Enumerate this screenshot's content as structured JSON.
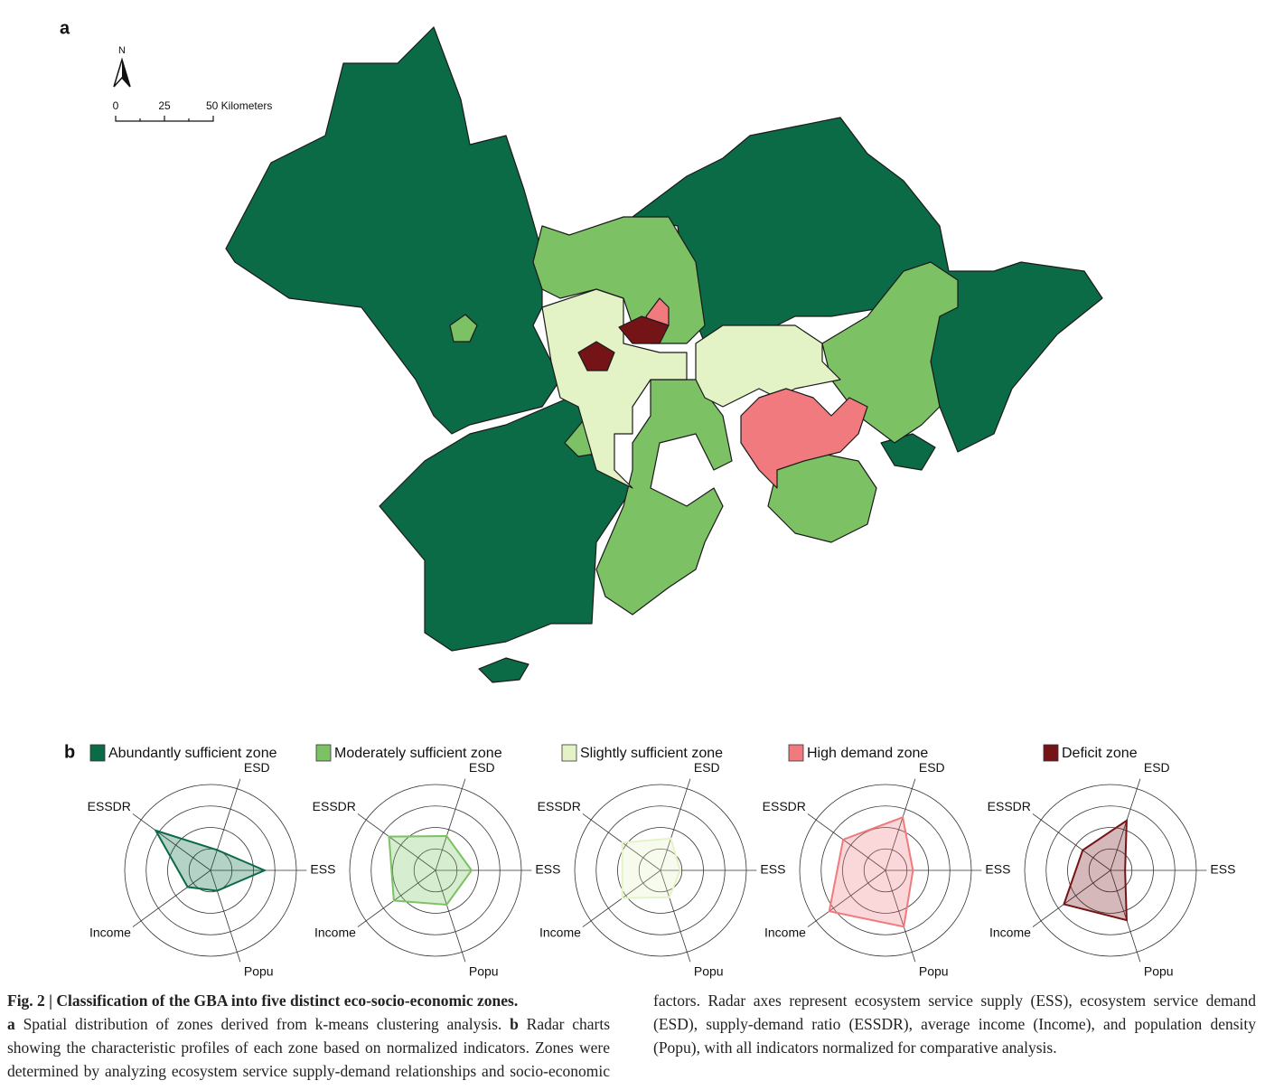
{
  "panel_labels": {
    "a": "a",
    "b": "b"
  },
  "map": {
    "north": "N",
    "scale_labels": [
      "0",
      "25",
      "50 Kilometers"
    ]
  },
  "chart_data": [
    {
      "type": "radar",
      "name": "Abundantly sufficient zone",
      "color": "#0b6b47",
      "axes": [
        "ESS",
        "ESD",
        "ESSDR",
        "Income",
        "Popu"
      ],
      "values": [
        0.63,
        0.25,
        0.79,
        0.33,
        0.25
      ],
      "ylim": [
        0,
        1
      ]
    },
    {
      "type": "radar",
      "name": "Moderately sufficient zone",
      "color": "#7cc264",
      "axes": [
        "ESS",
        "ESD",
        "ESSDR",
        "Income",
        "Popu"
      ],
      "values": [
        0.42,
        0.42,
        0.67,
        0.6,
        0.42
      ],
      "ylim": [
        0,
        1
      ]
    },
    {
      "type": "radar",
      "name": "Slightly sufficient zone",
      "color": "#e3f3c6",
      "axes": [
        "ESS",
        "ESD",
        "ESSDR",
        "Income",
        "Popu"
      ],
      "values": [
        0.23,
        0.39,
        0.55,
        0.55,
        0.33
      ],
      "ylim": [
        0,
        1
      ]
    },
    {
      "type": "radar",
      "name": "High demand zone",
      "color": "#f07a7e",
      "axes": [
        "ESS",
        "ESD",
        "ESSDR",
        "Income",
        "Popu"
      ],
      "values": [
        0.32,
        0.65,
        0.61,
        0.81,
        0.69
      ],
      "ylim": [
        0,
        1
      ]
    },
    {
      "type": "radar",
      "name": "Deficit zone",
      "color": "#741417",
      "axes": [
        "ESS",
        "ESD",
        "ESSDR",
        "Income",
        "Popu"
      ],
      "values": [
        0.17,
        0.61,
        0.4,
        0.67,
        0.61
      ],
      "ylim": [
        0,
        1
      ]
    }
  ],
  "caption": {
    "title": "Fig. 2 | Classification of the GBA into five distinct eco-socio-economic zones.",
    "a_label": "a",
    "a_text": "Spatial distribution of zones derived from k-means clustering analysis.",
    "b_label": "b",
    "b_text": "Radar charts showing the characteristic profiles of each zone based on normalized indicators. Zones were determined by analyzing ecosystem service supply-demand relationships and socio-economic factors. Radar axes represent ecosystem service supply (ESS), ecosystem service demand (ESD), supply-demand ratio (ESSDR), average income (Income), and population density (Popu), with all indicators normalized for comparative analysis."
  }
}
